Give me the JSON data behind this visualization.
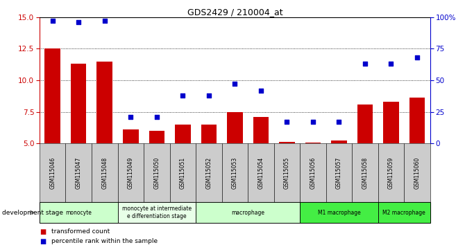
{
  "title": "GDS2429 / 210004_at",
  "samples": [
    "GSM115046",
    "GSM115047",
    "GSM115048",
    "GSM115049",
    "GSM115050",
    "GSM115051",
    "GSM115052",
    "GSM115053",
    "GSM115054",
    "GSM115055",
    "GSM115056",
    "GSM115057",
    "GSM115058",
    "GSM115059",
    "GSM115060"
  ],
  "transformed_count": [
    12.5,
    11.3,
    11.5,
    6.1,
    6.0,
    6.5,
    6.5,
    7.5,
    7.1,
    5.1,
    5.05,
    5.2,
    8.1,
    8.3,
    8.6
  ],
  "percentile_rank": [
    97,
    96,
    97,
    21,
    21,
    38,
    38,
    47,
    42,
    17,
    17,
    17,
    63,
    63,
    68
  ],
  "ylim_left": [
    5,
    15
  ],
  "ylim_right": [
    0,
    100
  ],
  "yticks_left": [
    5,
    7.5,
    10,
    12.5,
    15
  ],
  "yticks_right": [
    0,
    25,
    50,
    75,
    100
  ],
  "bar_color": "#cc0000",
  "scatter_color": "#0000cc",
  "group_defs": [
    {
      "label": "monocyte",
      "start": 0,
      "end": 2,
      "color": "#ccffcc"
    },
    {
      "label": "monocyte at intermediate\ne differentiation stage",
      "start": 3,
      "end": 5,
      "color": "#e8ffe8"
    },
    {
      "label": "macrophage",
      "start": 6,
      "end": 9,
      "color": "#ccffcc"
    },
    {
      "label": "M1 macrophage",
      "start": 10,
      "end": 12,
      "color": "#44ee44"
    },
    {
      "label": "M2 macrophage",
      "start": 13,
      "end": 14,
      "color": "#44ee44"
    }
  ],
  "legend_bar_color": "#cc0000",
  "legend_scatter_color": "#0000cc",
  "legend_bar_label": "transformed count",
  "legend_scatter_label": "percentile rank within the sample",
  "dev_stage_label": "development stage",
  "xticklabel_bg": "#cccccc"
}
